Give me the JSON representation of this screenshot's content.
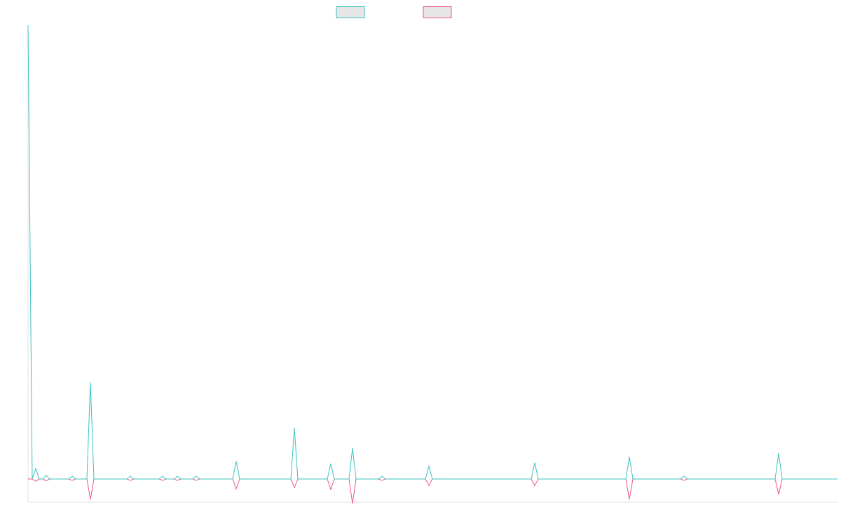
{
  "chart_data": {
    "type": "line",
    "x": [
      0,
      6,
      11,
      16,
      21,
      26,
      31,
      58,
      63,
      68,
      84,
      89,
      94,
      141,
      146,
      151,
      187,
      192,
      197,
      208,
      213,
      218,
      235,
      240,
      245,
      292,
      297,
      302,
      375,
      380,
      385,
      427,
      432,
      437,
      458,
      463,
      468,
      500,
      505,
      510,
      567,
      572,
      577,
      718,
      723,
      728,
      853,
      858,
      863,
      931,
      936,
      941,
      1066,
      1071,
      1076,
      1155
    ],
    "series": [
      {
        "color": "#3cc0c0",
        "values": [
          100,
          0,
          2.3,
          0,
          0,
          0.8,
          0,
          0,
          0.6,
          0,
          0,
          21.3,
          0,
          0,
          0.6,
          0,
          0,
          0.6,
          0,
          0,
          0.6,
          0,
          0,
          0.6,
          0,
          0,
          3.9,
          0,
          0,
          11.3,
          0,
          0,
          3.4,
          0,
          0,
          6.8,
          0,
          0,
          0.6,
          0,
          0,
          2.8,
          0,
          0,
          3.6,
          0,
          0,
          4.9,
          0,
          0,
          0.6,
          0,
          0,
          5.7,
          0,
          0
        ]
      },
      {
        "color": "#f2587c",
        "values": [
          0,
          0,
          -0.5,
          0,
          0,
          -0.4,
          0,
          0,
          -0.3,
          0,
          0,
          -4.5,
          0,
          0,
          -0.3,
          0,
          0,
          -0.3,
          0,
          0,
          -0.3,
          0,
          0,
          -0.3,
          0,
          0,
          -2.2,
          0,
          0,
          -1.9,
          0,
          0,
          -2.3,
          0,
          0,
          -5.4,
          0,
          0,
          -0.3,
          0,
          0,
          -1.4,
          0,
          0,
          -1.5,
          0,
          0,
          -4.5,
          0,
          0,
          -0.3,
          0,
          0,
          -3.4,
          0,
          0
        ]
      }
    ],
    "xlim": [
      0,
      1155
    ],
    "ylim": [
      -5.1,
      100
    ],
    "grid": false,
    "legend": "top"
  }
}
